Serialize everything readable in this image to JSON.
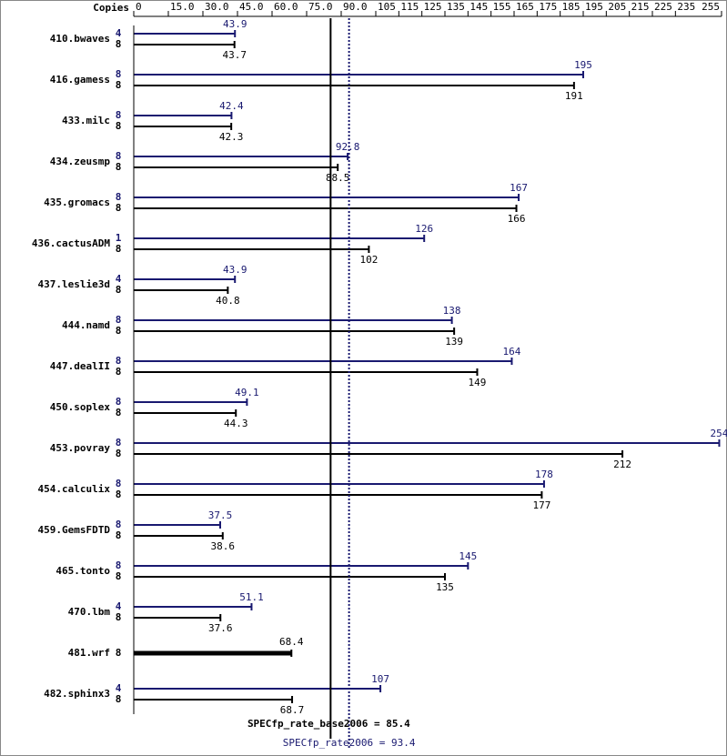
{
  "chart_data": {
    "type": "bar",
    "copies_label": "Copies",
    "categories": [
      "410.bwaves",
      "416.gamess",
      "433.milc",
      "434.zeusmp",
      "435.gromacs",
      "436.cactusADM",
      "437.leslie3d",
      "444.namd",
      "447.dealII",
      "450.soplex",
      "453.povray",
      "454.calculix",
      "459.GemsFDTD",
      "465.tonto",
      "470.lbm",
      "481.wrf",
      "482.sphinx3"
    ],
    "peak_copies": [
      4,
      8,
      8,
      8,
      8,
      1,
      4,
      8,
      8,
      8,
      8,
      8,
      8,
      8,
      4,
      null,
      4
    ],
    "peak": [
      43.9,
      195,
      42.4,
      92.8,
      167,
      126,
      43.9,
      138,
      164,
      49.1,
      254,
      178,
      37.5,
      145,
      51.1,
      null,
      107
    ],
    "base_copies": [
      8,
      8,
      8,
      8,
      8,
      8,
      8,
      8,
      8,
      8,
      8,
      8,
      8,
      8,
      8,
      8,
      8
    ],
    "base": [
      43.7,
      191,
      42.3,
      88.5,
      166,
      102,
      40.8,
      139,
      149,
      44.3,
      212,
      177,
      38.6,
      135,
      37.6,
      68.4,
      68.7
    ],
    "peak_color": "#191970",
    "base_color": "#000000",
    "xlim": [
      0,
      255
    ],
    "xticks": [
      0,
      {
        "value": 15,
        "label": "15.0"
      },
      {
        "value": 30,
        "label": "30.0"
      },
      {
        "value": 45,
        "label": "45.0"
      },
      {
        "value": 60,
        "label": "60.0"
      },
      {
        "value": 75,
        "label": "75.0"
      },
      {
        "value": 90,
        "label": "90.0"
      },
      105,
      115,
      125,
      135,
      145,
      155,
      165,
      175,
      185,
      195,
      205,
      215,
      225,
      235,
      255
    ],
    "summary": {
      "base_text": "SPECfp_rate_base2006 = 85.4",
      "base": 85.4,
      "peak_text": "SPECfp_rate2006 = 93.4",
      "peak": 93.4
    }
  }
}
